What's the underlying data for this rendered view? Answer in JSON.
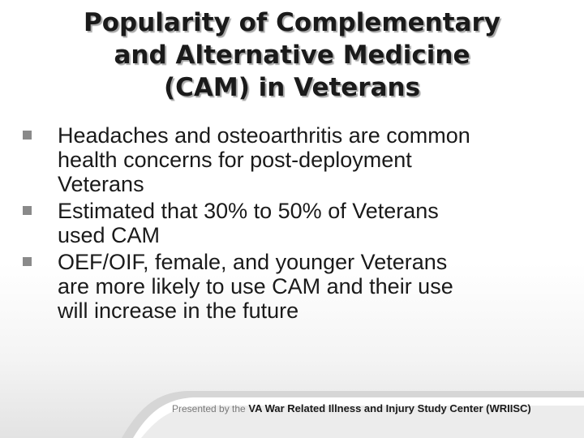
{
  "title": {
    "line1": "Popularity of Complementary",
    "line2": "and Alternative Medicine",
    "line3": "(CAM) in Veterans"
  },
  "bullets": [
    {
      "lines": [
        "Headaches and osteoarthritis are common",
        "health concerns for post-deployment",
        "Veterans"
      ]
    },
    {
      "lines": [
        "Estimated that 30% to 50% of Veterans",
        "used CAM"
      ]
    },
    {
      "lines": [
        "OEF/OIF, female, and younger Veterans",
        "are more likely to use CAM and their use",
        "will increase in the future"
      ]
    }
  ],
  "footer": {
    "prefix": "Presented by the",
    "organization": "VA War Related Illness and Injury Study Center (WRIISC)"
  },
  "colors": {
    "bullet_marker": "#8a8a8a",
    "title_shadow": "#a8a8a8",
    "text": "#1a1a1a"
  }
}
